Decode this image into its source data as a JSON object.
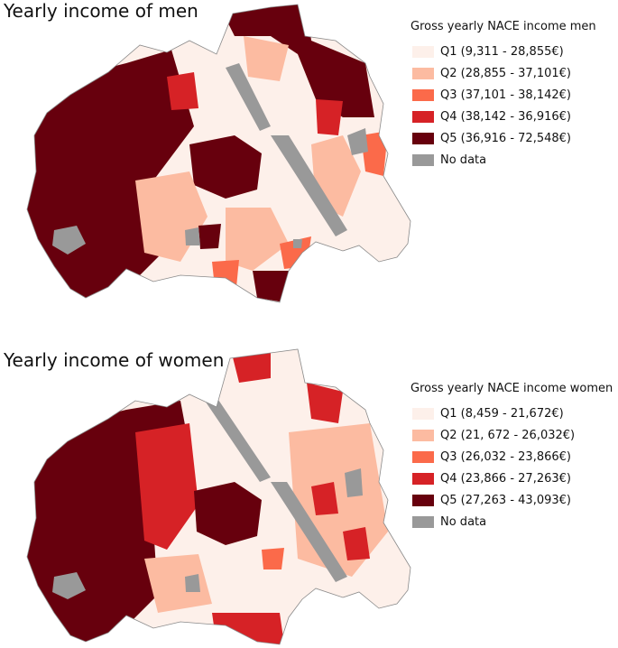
{
  "maps": [
    {
      "title": "Yearly income of men",
      "legend": {
        "title": "Gross yearly NACE income men",
        "items": [
          {
            "label": "Q1 (9,311 - 28,855€)",
            "color": "#fdf0ea"
          },
          {
            "label": "Q2 (28,855 - 37,101€)",
            "color": "#fcbba1"
          },
          {
            "label": "Q3 (37,101 - 38,142€)",
            "color": "#fb6a4a"
          },
          {
            "label": "Q4 (38,142 - 36,916€)",
            "color": "#d62226"
          },
          {
            "label": "Q5 (36,916 - 72,548€)",
            "color": "#67000d"
          },
          {
            "label": "No data",
            "color": "#999999"
          }
        ]
      }
    },
    {
      "title": "Yearly income of women",
      "legend": {
        "title": "Gross yearly NACE income women",
        "items": [
          {
            "label": "Q1 (8,459 - 21,672€)",
            "color": "#fdf0ea"
          },
          {
            "label": "Q2 (21, 672 - 26,032€)",
            "color": "#fcbba1"
          },
          {
            "label": "Q3 (26,032 - 23,866€)",
            "color": "#fb6a4a"
          },
          {
            "label": "Q4 (23,866 - 27,263€)",
            "color": "#d62226"
          },
          {
            "label": "Q5 (27,263 - 43,093€)",
            "color": "#67000d"
          },
          {
            "label": "No data",
            "color": "#999999"
          }
        ]
      }
    }
  ]
}
